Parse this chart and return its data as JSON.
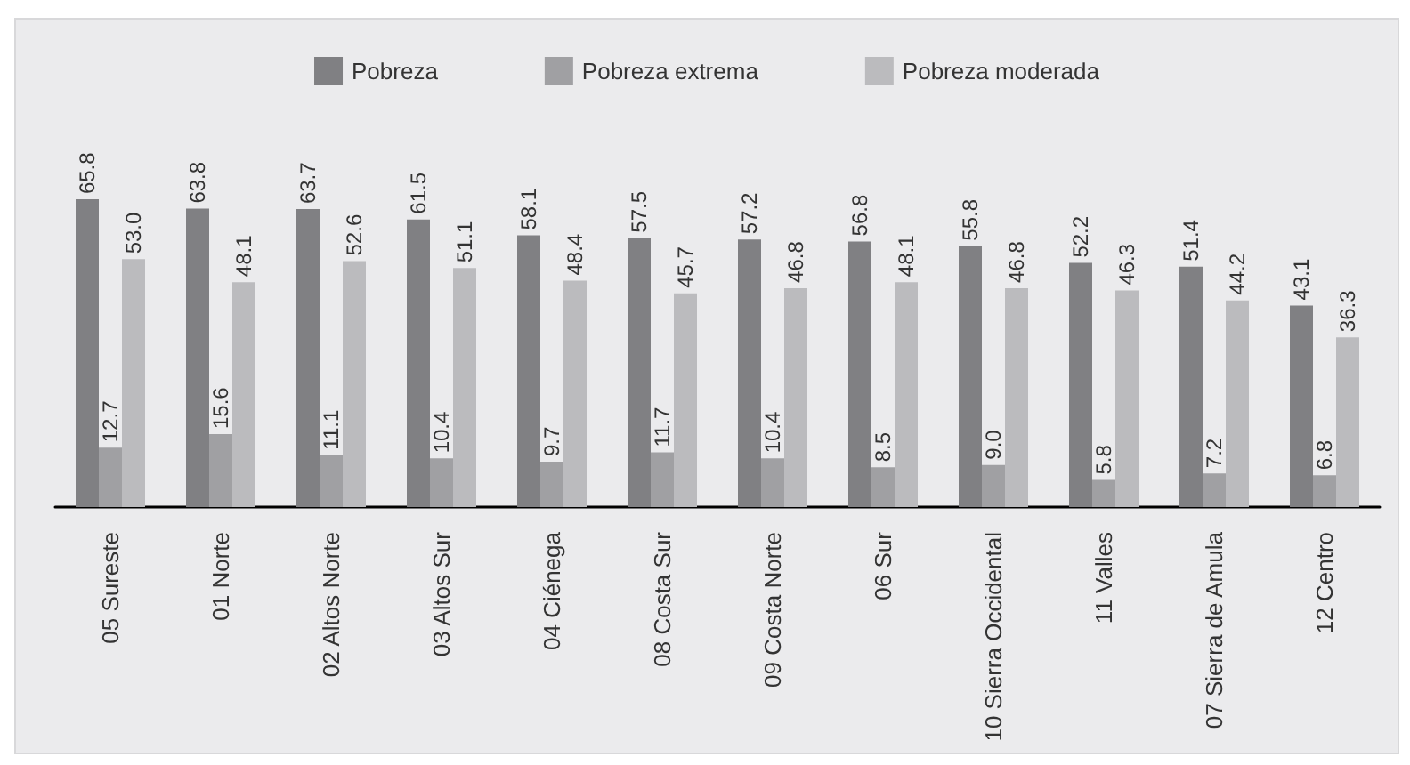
{
  "chart_data": {
    "type": "bar",
    "categories": [
      "05 Sureste",
      "01 Norte",
      "02 Altos Norte",
      "03 Altos Sur",
      "04 Ciénega",
      "08 Costa Sur",
      "09 Costa Norte",
      "06 Sur",
      "10 Sierra Occidental",
      "11 Valles",
      "07 Sierra de Amula",
      "12 Centro"
    ],
    "series": [
      {
        "name": "Pobreza",
        "color": "#808083",
        "values": [
          65.8,
          63.8,
          63.7,
          61.5,
          58.1,
          57.5,
          57.2,
          56.8,
          55.8,
          52.2,
          51.4,
          43.1
        ],
        "value_labels": [
          "65.8",
          "63.8",
          "63.7",
          "61.5",
          "58.1",
          "57.5",
          "57.2",
          "56.8",
          "55.8",
          "52.2",
          "51.4",
          "43.1"
        ]
      },
      {
        "name": "Pobreza extrema",
        "color": "#a0a0a3",
        "values": [
          12.7,
          15.6,
          11.1,
          10.4,
          9.7,
          11.7,
          10.4,
          8.5,
          9.0,
          5.8,
          7.2,
          6.8
        ],
        "value_labels": [
          "12.7",
          "15.6",
          "11.1",
          "10.4",
          "9.7",
          "11.7",
          "10.4",
          "8.5",
          "9.0",
          "5.8",
          "7.2",
          "6.8"
        ]
      },
      {
        "name": "Pobreza moderada",
        "color": "#bbbbbe",
        "values": [
          53.0,
          48.1,
          52.6,
          51.1,
          48.4,
          45.7,
          46.8,
          48.1,
          46.8,
          46.3,
          44.2,
          36.3
        ],
        "value_labels": [
          "53.0",
          "48.1",
          "52.6",
          "51.1",
          "48.4",
          "45.7",
          "46.8",
          "48.1",
          "46.8",
          "46.3",
          "44.2",
          "36.3"
        ]
      }
    ],
    "legend": "top",
    "grid": false
  }
}
